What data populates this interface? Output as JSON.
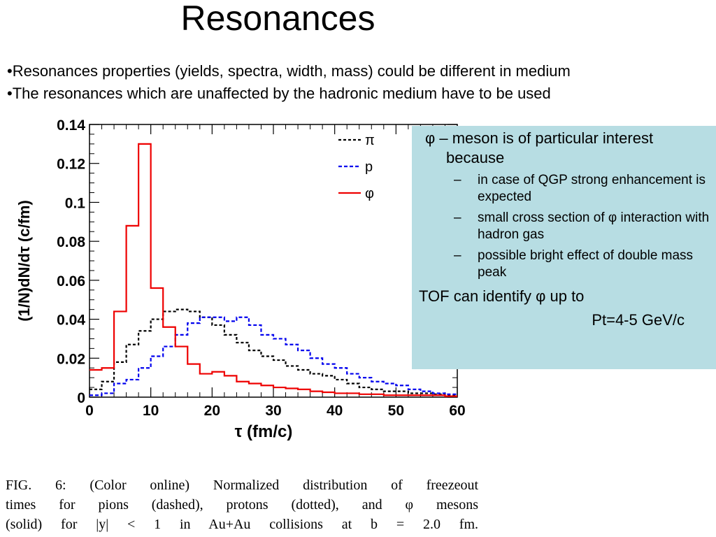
{
  "slide": {
    "title": "Resonances",
    "bullets": [
      "•Resonances properties (yields, spectra, width, mass) could be different in medium",
      "•The resonances which are unaffected by the hadronic medium have to be used"
    ]
  },
  "callout": {
    "lead": "φ – meson is of particular interest because",
    "items": [
      "in case of QGP strong enhancement is expected",
      "small cross section of φ interaction with hadron gas",
      "possible bright effect of double mass peak"
    ],
    "dash": "–",
    "tof_line": "TOF can identify φ up to",
    "pt_line": "Pt=4-5 GeV/c",
    "background_color": "#b7dde3"
  },
  "caption": {
    "lines": [
      "FIG. 6: (Color online) Normalized distribution of freezeout",
      "times for pions (dashed), protons (dotted), and φ mesons",
      "(solid) for |y| < 1 in Au+Au collisions at b = 2.0 fm."
    ]
  },
  "chart_data": {
    "type": "line",
    "style": "step-histogram",
    "xlabel": "τ (fm/c)",
    "ylabel": "(1/N)dN/dτ (c/fm)",
    "xlim": [
      0,
      60
    ],
    "ylim": [
      0,
      0.14
    ],
    "xticks": [
      0,
      10,
      20,
      30,
      40,
      50,
      60
    ],
    "ytick_labels": [
      "0",
      "0.02",
      "0.04",
      "0.06",
      "0.08",
      "0.1",
      "0.12",
      "0.14"
    ],
    "ytick_values": [
      0,
      0.02,
      0.04,
      0.06,
      0.08,
      0.1,
      0.12,
      0.14
    ],
    "bin_width": 2,
    "bin_starts": [
      0,
      2,
      4,
      6,
      8,
      10,
      12,
      14,
      16,
      18,
      20,
      22,
      24,
      26,
      28,
      30,
      32,
      34,
      36,
      38,
      40,
      42,
      44,
      46,
      48,
      50,
      52,
      54,
      56,
      58
    ],
    "legend_position": "top-right",
    "series": [
      {
        "name": "π",
        "color": "#000000",
        "dash": "4,3",
        "values": [
          0.004,
          0.008,
          0.018,
          0.027,
          0.034,
          0.04,
          0.044,
          0.045,
          0.044,
          0.041,
          0.037,
          0.032,
          0.028,
          0.024,
          0.021,
          0.019,
          0.016,
          0.014,
          0.012,
          0.011,
          0.009,
          0.007,
          0.005,
          0.004,
          0.003,
          0.003,
          0.002,
          0.002,
          0.0015,
          0.001
        ]
      },
      {
        "name": "p",
        "color": "#0000ee",
        "dash": "5,3",
        "values": [
          0.001,
          0.002,
          0.007,
          0.009,
          0.015,
          0.021,
          0.026,
          0.032,
          0.038,
          0.041,
          0.041,
          0.039,
          0.041,
          0.037,
          0.032,
          0.03,
          0.027,
          0.024,
          0.02,
          0.017,
          0.015,
          0.012,
          0.01,
          0.008,
          0.007,
          0.006,
          0.004,
          0.003,
          0.002,
          0.0015
        ]
      },
      {
        "name": "φ",
        "color": "#ee0000",
        "dash": "",
        "values": [
          0.014,
          0.015,
          0.044,
          0.088,
          0.13,
          0.056,
          0.036,
          0.026,
          0.017,
          0.012,
          0.013,
          0.011,
          0.008,
          0.007,
          0.006,
          0.005,
          0.0045,
          0.004,
          0.003,
          0.0025,
          0.002,
          0.002,
          0.0015,
          0.0015,
          0.001,
          0.001,
          0.001,
          0.001,
          0.001,
          0.0005
        ]
      }
    ]
  }
}
